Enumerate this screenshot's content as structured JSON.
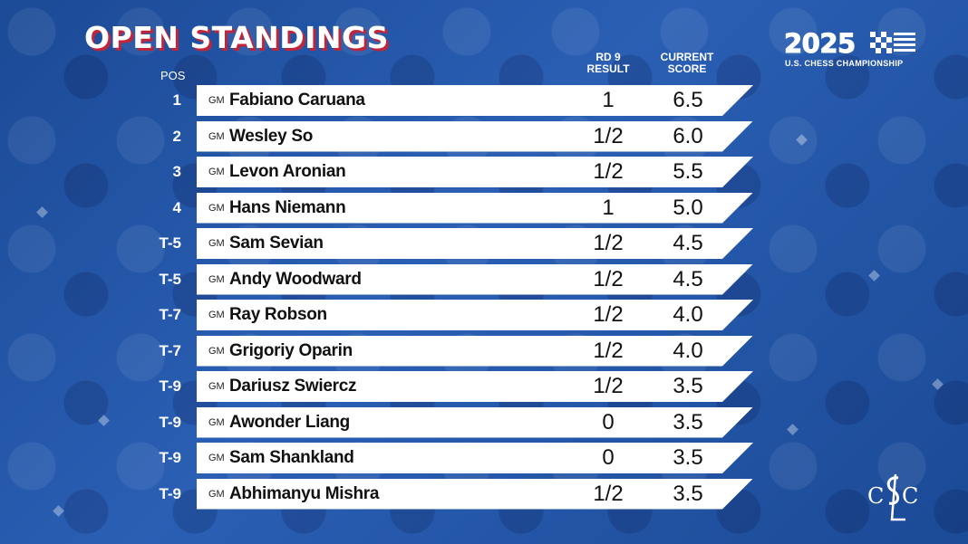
{
  "header": {
    "title": "OPEN STANDINGS",
    "pos_label": "POS",
    "result_label_line1": "RD 9",
    "result_label_line2": "RESULT",
    "score_label_line1": "CURRENT",
    "score_label_line2": "SCORE"
  },
  "logo": {
    "year": "2025",
    "subtitle": "U.S. CHESS CHAMPIONSHIP",
    "icon": "flag-checkered-icon"
  },
  "club_logo": {
    "icon": "stlcc-monogram-logo",
    "text": "CSLC"
  },
  "colors": {
    "background": "#1d4e9c",
    "title_shadow": "#c0263b",
    "row_bg": "#ffffff"
  },
  "standings": [
    {
      "pos": "1",
      "title": "GM",
      "name": "Fabiano Caruana",
      "result": "1",
      "score": "6.5"
    },
    {
      "pos": "2",
      "title": "GM",
      "name": "Wesley So",
      "result": "1/2",
      "score": "6.0"
    },
    {
      "pos": "3",
      "title": "GM",
      "name": "Levon Aronian",
      "result": "1/2",
      "score": "5.5"
    },
    {
      "pos": "4",
      "title": "GM",
      "name": "Hans Niemann",
      "result": "1",
      "score": "5.0"
    },
    {
      "pos": "T-5",
      "title": "GM",
      "name": "Sam Sevian",
      "result": "1/2",
      "score": "4.5"
    },
    {
      "pos": "T-5",
      "title": "GM",
      "name": "Andy Woodward",
      "result": "1/2",
      "score": "4.5"
    },
    {
      "pos": "T-7",
      "title": "GM",
      "name": "Ray Robson",
      "result": "1/2",
      "score": "4.0"
    },
    {
      "pos": "T-7",
      "title": "GM",
      "name": "Grigoriy Oparin",
      "result": "1/2",
      "score": "4.0"
    },
    {
      "pos": "T-9",
      "title": "GM",
      "name": "Dariusz Swiercz",
      "result": "1/2",
      "score": "3.5"
    },
    {
      "pos": "T-9",
      "title": "GM",
      "name": "Awonder Liang",
      "result": "0",
      "score": "3.5"
    },
    {
      "pos": "T-9",
      "title": "GM",
      "name": "Sam Shankland",
      "result": "0",
      "score": "3.5"
    },
    {
      "pos": "T-9",
      "title": "GM",
      "name": "Abhimanyu Mishra",
      "result": "1/2",
      "score": "3.5"
    }
  ]
}
